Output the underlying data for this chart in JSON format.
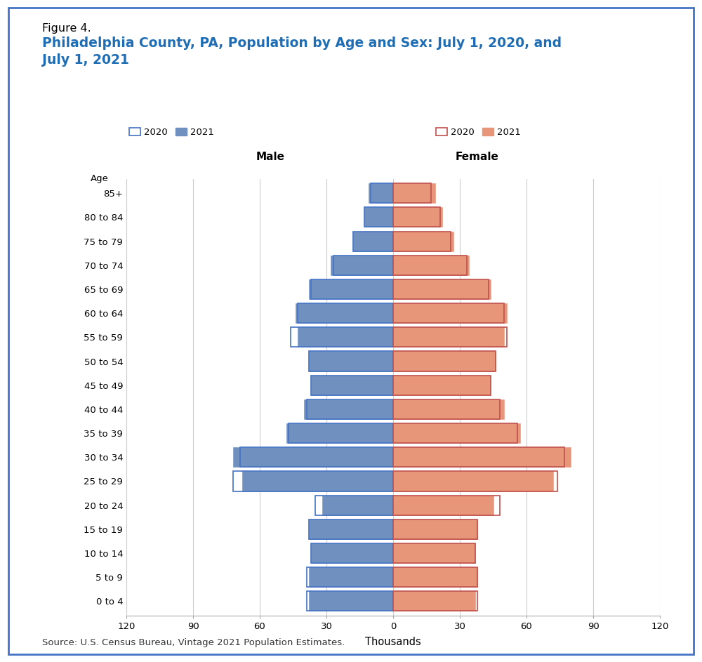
{
  "title_line1": "Figure 4.",
  "title_line2": "Philadelphia County, PA, Population by Age and Sex: July 1, 2020, and\nJuly 1, 2021",
  "title_color": "#1f6eb5",
  "title_line1_color": "#000000",
  "source_text": "Source: U.S. Census Bureau, Vintage 2021 Population Estimates.",
  "age_labels": [
    "0 to 4",
    "5 to 9",
    "10 to 14",
    "15 to 19",
    "20 to 24",
    "25 to 29",
    "30 to 34",
    "35 to 39",
    "40 to 44",
    "45 to 49",
    "50 to 54",
    "55 to 59",
    "60 to 64",
    "65 to 69",
    "70 to 74",
    "75 to 79",
    "80 to 84",
    "85+"
  ],
  "male_2021": [
    38,
    38,
    37,
    38,
    32,
    68,
    72,
    48,
    40,
    37,
    38,
    43,
    44,
    38,
    28,
    18,
    13,
    11
  ],
  "male_2020": [
    39,
    39,
    37,
    38,
    35,
    72,
    69,
    47,
    39,
    37,
    38,
    46,
    43,
    37,
    27,
    18,
    13,
    10
  ],
  "female_2021": [
    37,
    38,
    37,
    38,
    45,
    72,
    80,
    57,
    50,
    44,
    46,
    50,
    51,
    44,
    34,
    27,
    22,
    19
  ],
  "female_2020": [
    38,
    38,
    37,
    38,
    48,
    74,
    77,
    56,
    48,
    44,
    46,
    51,
    50,
    43,
    33,
    26,
    21,
    17
  ],
  "male_2021_color": "#7090c0",
  "male_2020_edge": "#4472c4",
  "female_2021_color": "#e8967a",
  "female_2020_edge": "#c0504d",
  "xlabel": "Thousands",
  "xlim": 120,
  "grid_color": "#cccccc",
  "background_color": "#ffffff",
  "border_color": "#4472c4"
}
